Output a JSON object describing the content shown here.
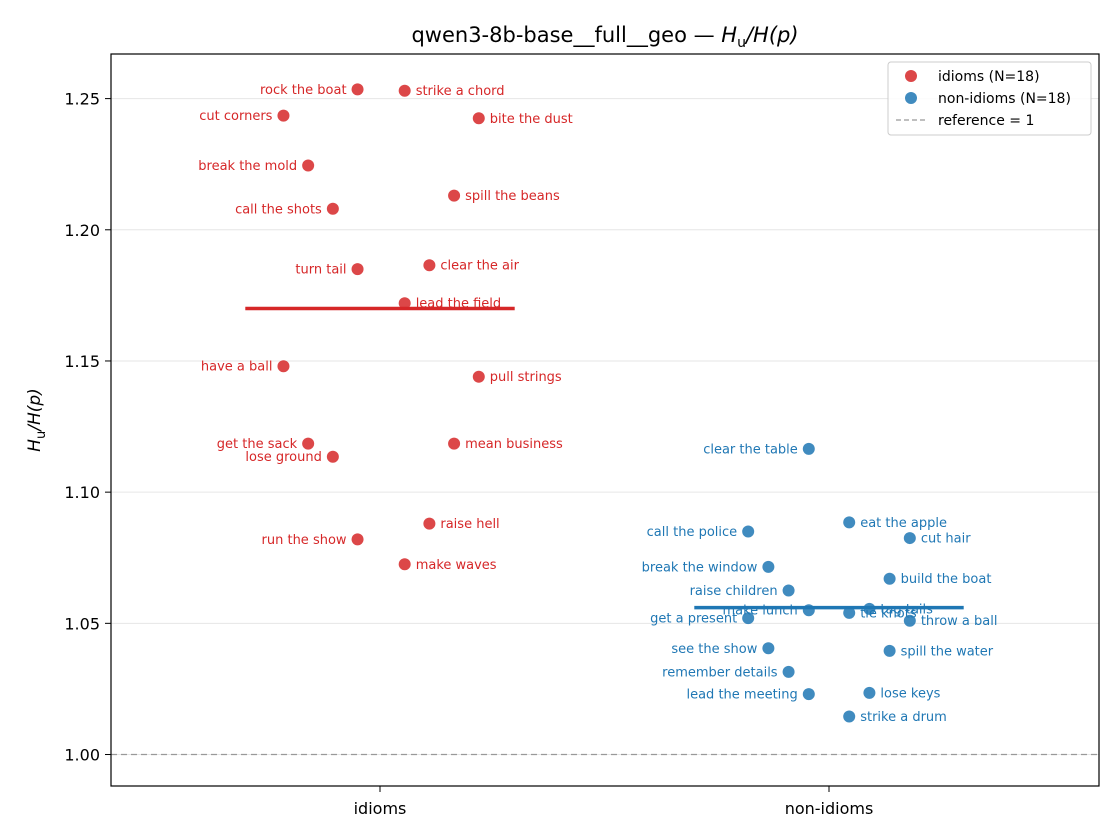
{
  "chart_data": {
    "type": "scatter",
    "title_main": "qwen3-8b-base__full__geo — ",
    "title_math": {
      "H": "H",
      "sub": "u",
      "tail": "/H(p)"
    },
    "ylabel": {
      "H": "H",
      "sub": "u",
      "tail": "/H(p)"
    },
    "categories": [
      "idioms",
      "non-idioms"
    ],
    "ylim": [
      0.988,
      1.267
    ],
    "yticks": [
      1.0,
      1.05,
      1.1,
      1.15,
      1.2,
      1.25
    ],
    "ytick_labels": [
      "1.00",
      "1.05",
      "1.10",
      "1.15",
      "1.20",
      "1.25"
    ],
    "grid": "y",
    "legend_position": "top-right",
    "reference": {
      "value": 1,
      "label": "reference = 1",
      "color": "#999999"
    },
    "series": [
      {
        "name": "idioms (N=18)",
        "category": "idioms",
        "color": "#d62728",
        "mean": 1.17,
        "points": [
          {
            "label": "rock the boat",
            "x": -0.05,
            "y": 1.2535,
            "side": "left"
          },
          {
            "label": "strike a chord",
            "x": 0.055,
            "y": 1.253,
            "side": "right"
          },
          {
            "label": "cut corners",
            "x": -0.215,
            "y": 1.2435,
            "side": "left"
          },
          {
            "label": "bite the dust",
            "x": 0.22,
            "y": 1.2425,
            "side": "right"
          },
          {
            "label": "break the mold",
            "x": -0.16,
            "y": 1.2245,
            "side": "left"
          },
          {
            "label": "spill the beans",
            "x": 0.165,
            "y": 1.213,
            "side": "right"
          },
          {
            "label": "call the shots",
            "x": -0.105,
            "y": 1.208,
            "side": "left"
          },
          {
            "label": "clear the air",
            "x": 0.11,
            "y": 1.1865,
            "side": "right"
          },
          {
            "label": "turn tail",
            "x": -0.05,
            "y": 1.185,
            "side": "left"
          },
          {
            "label": "lead the field",
            "x": 0.055,
            "y": 1.172,
            "side": "right"
          },
          {
            "label": "have a ball",
            "x": -0.215,
            "y": 1.148,
            "side": "left"
          },
          {
            "label": "pull strings",
            "x": 0.22,
            "y": 1.144,
            "side": "right"
          },
          {
            "label": "get the sack",
            "x": -0.16,
            "y": 1.1185,
            "side": "left"
          },
          {
            "label": "mean business",
            "x": 0.165,
            "y": 1.1185,
            "side": "right"
          },
          {
            "label": "lose ground",
            "x": -0.105,
            "y": 1.1135,
            "side": "left"
          },
          {
            "label": "raise hell",
            "x": 0.11,
            "y": 1.088,
            "side": "right"
          },
          {
            "label": "run the show",
            "x": -0.05,
            "y": 1.082,
            "side": "left"
          },
          {
            "label": "make waves",
            "x": 0.055,
            "y": 1.0725,
            "side": "right"
          }
        ]
      },
      {
        "name": "non-idioms (N=18)",
        "category": "non-idioms",
        "color": "#1f77b4",
        "mean": 1.056,
        "points": [
          {
            "label": "clear the table",
            "x": -0.045,
            "y": 1.1165,
            "side": "left"
          },
          {
            "label": "eat the apple",
            "x": 0.045,
            "y": 1.0885,
            "side": "right"
          },
          {
            "label": "call the police",
            "x": -0.18,
            "y": 1.085,
            "side": "left"
          },
          {
            "label": "cut hair",
            "x": 0.18,
            "y": 1.0825,
            "side": "right"
          },
          {
            "label": "break the window",
            "x": -0.135,
            "y": 1.0715,
            "side": "left"
          },
          {
            "label": "build the boat",
            "x": 0.135,
            "y": 1.067,
            "side": "right"
          },
          {
            "label": "raise children",
            "x": -0.09,
            "y": 1.0625,
            "side": "left"
          },
          {
            "label": "tag tails",
            "x": 0.09,
            "y": 1.0555,
            "side": "right"
          },
          {
            "label": "make lunch",
            "x": -0.045,
            "y": 1.055,
            "side": "left"
          },
          {
            "label": "tie knots",
            "x": 0.045,
            "y": 1.054,
            "side": "right"
          },
          {
            "label": "get a present",
            "x": -0.18,
            "y": 1.052,
            "side": "left"
          },
          {
            "label": "throw a ball",
            "x": 0.18,
            "y": 1.051,
            "side": "right"
          },
          {
            "label": "see the show",
            "x": -0.135,
            "y": 1.0405,
            "side": "left"
          },
          {
            "label": "spill the water",
            "x": 0.135,
            "y": 1.0395,
            "side": "right"
          },
          {
            "label": "remember details",
            "x": -0.09,
            "y": 1.0315,
            "side": "left"
          },
          {
            "label": "lose keys",
            "x": 0.09,
            "y": 1.0235,
            "side": "right"
          },
          {
            "label": "lead the meeting",
            "x": -0.045,
            "y": 1.023,
            "side": "left"
          },
          {
            "label": "strike a drum",
            "x": 0.045,
            "y": 1.0145,
            "side": "right"
          }
        ]
      }
    ]
  }
}
